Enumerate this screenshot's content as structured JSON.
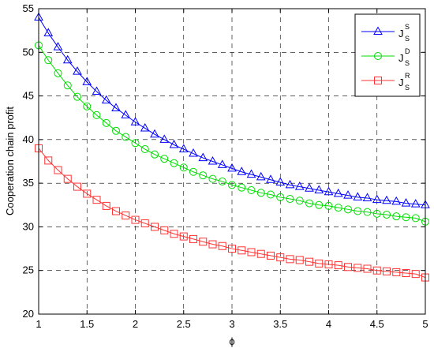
{
  "chart_data": {
    "type": "line",
    "title": "",
    "xlabel": "ϕ",
    "ylabel": "Cooperation chain profit",
    "xlim": [
      1,
      5
    ],
    "ylim": [
      20,
      55
    ],
    "xticks": [
      "1",
      "1.5",
      "2",
      "2.5",
      "3",
      "3.5",
      "4",
      "4.5",
      "5"
    ],
    "yticks": [
      "20",
      "25",
      "30",
      "35",
      "40",
      "45",
      "50",
      "55"
    ],
    "grid": true,
    "legend_position": "top-right",
    "x": [
      1.0,
      1.1,
      1.2,
      1.3,
      1.4,
      1.5,
      1.6,
      1.7,
      1.8,
      1.9,
      2.0,
      2.1,
      2.2,
      2.3,
      2.4,
      2.5,
      2.6,
      2.7,
      2.8,
      2.9,
      3.0,
      3.1,
      3.2,
      3.3,
      3.4,
      3.5,
      3.6,
      3.7,
      3.8,
      3.9,
      4.0,
      4.1,
      4.2,
      4.3,
      4.4,
      4.5,
      4.6,
      4.7,
      4.8,
      4.9,
      5.0
    ],
    "series": [
      {
        "name": "J",
        "name_sup": "S",
        "name_sub": "S",
        "color": "#0000ff",
        "marker": "triangle",
        "values": [
          54.0,
          52.2,
          50.6,
          49.1,
          47.8,
          46.6,
          45.5,
          44.5,
          43.6,
          42.8,
          42.0,
          41.3,
          40.6,
          40.0,
          39.4,
          38.9,
          38.4,
          37.9,
          37.5,
          37.1,
          36.7,
          36.3,
          36.0,
          35.7,
          35.4,
          35.1,
          34.8,
          34.6,
          34.4,
          34.2,
          34.0,
          33.8,
          33.6,
          33.4,
          33.3,
          33.1,
          33.0,
          32.9,
          32.7,
          32.6,
          32.5
        ]
      },
      {
        "name": "J",
        "name_sup": "D",
        "name_sub": "S",
        "color": "#00dd00",
        "marker": "circle",
        "values": [
          50.8,
          49.1,
          47.6,
          46.2,
          44.9,
          43.8,
          42.8,
          41.9,
          41.0,
          40.3,
          39.6,
          38.9,
          38.3,
          37.8,
          37.3,
          36.8,
          36.3,
          35.9,
          35.5,
          35.2,
          34.8,
          34.5,
          34.2,
          33.9,
          33.7,
          33.4,
          33.2,
          33.0,
          32.7,
          32.5,
          32.4,
          32.2,
          32.0,
          31.8,
          31.7,
          31.5,
          31.4,
          31.2,
          31.1,
          31.0,
          30.6
        ]
      },
      {
        "name": "J",
        "name_sup": "R",
        "name_sub": "S",
        "color": "#ff3333",
        "marker": "square",
        "values": [
          39.0,
          37.6,
          36.5,
          35.5,
          34.6,
          33.8,
          33.1,
          32.4,
          31.8,
          31.3,
          30.8,
          30.4,
          30.0,
          29.6,
          29.2,
          28.9,
          28.6,
          28.3,
          28.0,
          27.8,
          27.5,
          27.3,
          27.1,
          26.9,
          26.7,
          26.5,
          26.3,
          26.2,
          26.0,
          25.8,
          25.7,
          25.6,
          25.4,
          25.3,
          25.2,
          25.0,
          24.9,
          24.8,
          24.7,
          24.6,
          24.2
        ]
      }
    ]
  }
}
